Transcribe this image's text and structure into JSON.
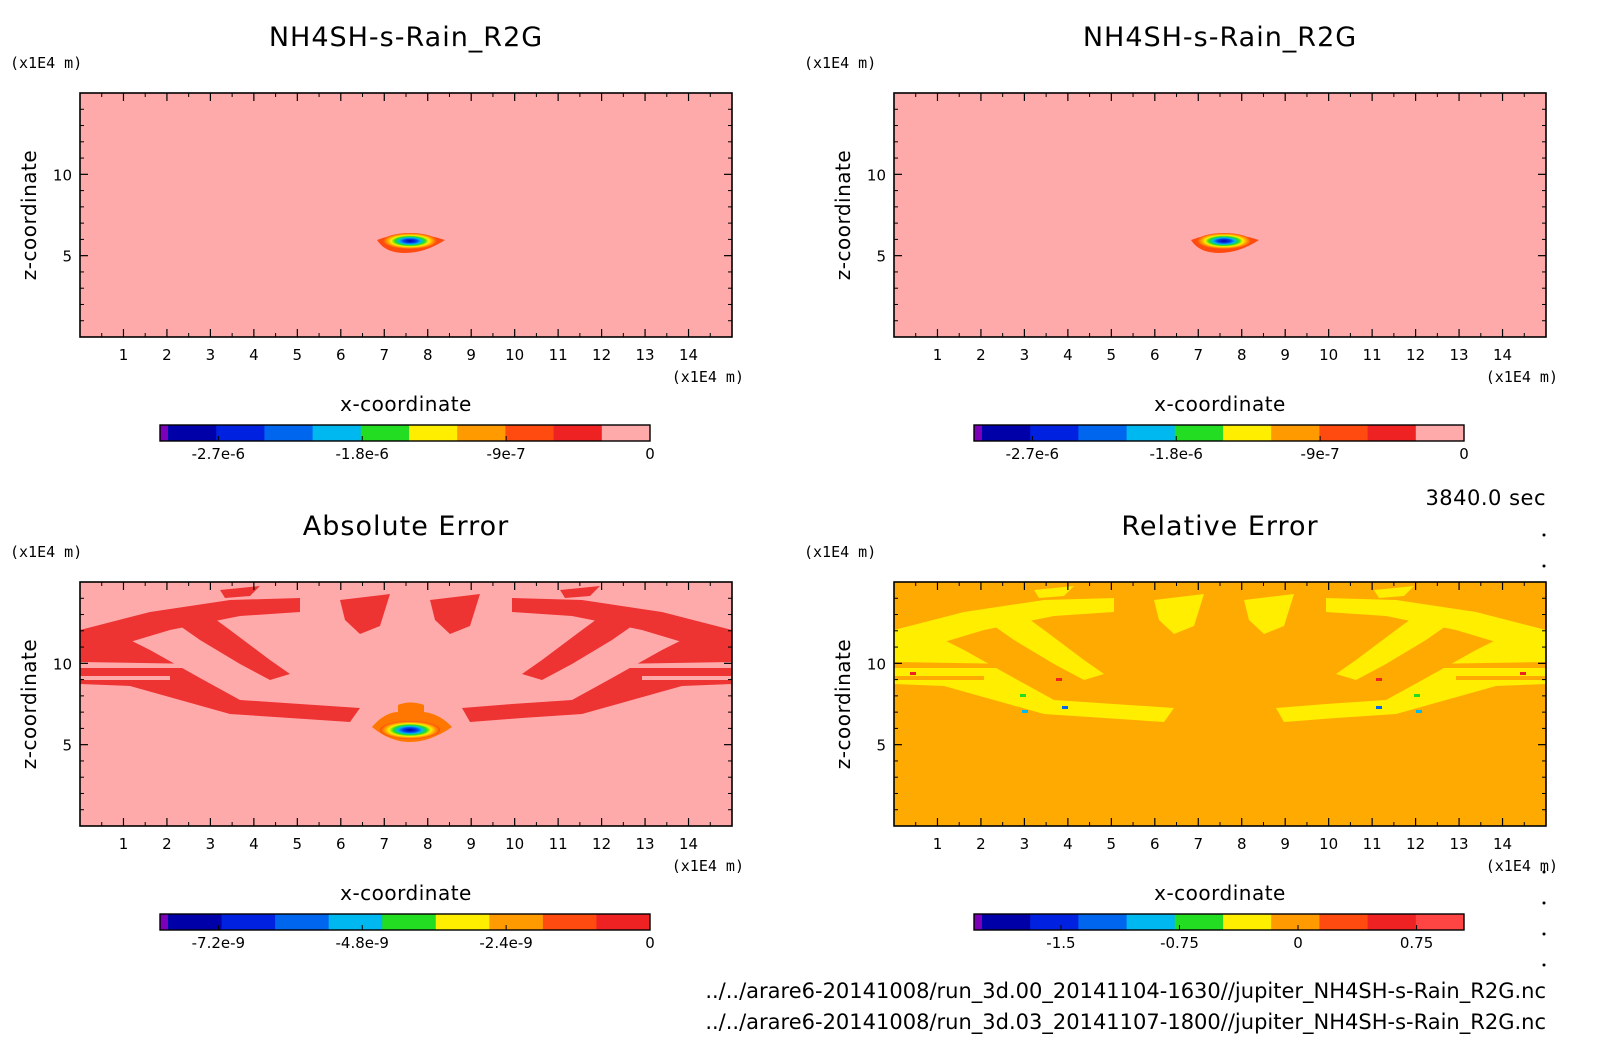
{
  "time_label": "3840.0 sec",
  "file_paths": [
    "../../arare6-20141008/run_3d.00_20141104-1630//jupiter_NH4SH-s-Rain_R2G.nc",
    "../../arare6-20141008/run_3d.03_20141107-1800//jupiter_NH4SH-s-Rain_R2G.nc"
  ],
  "chart_data": [
    {
      "type": "heatmap",
      "title": "NH4SH-s-Rain_R2G",
      "xlabel": "x-coordinate",
      "ylabel": "z-coordinate",
      "x_unit": "(x1E4 m)",
      "y_unit": "(x1E4 m)",
      "xlim": [
        0,
        15
      ],
      "ylim": [
        0,
        15
      ],
      "x_ticks": [
        "1",
        "2",
        "3",
        "4",
        "5",
        "6",
        "7",
        "8",
        "9",
        "10",
        "11",
        "12",
        "13",
        "14"
      ],
      "y_ticks": [
        "5",
        "10"
      ],
      "background_value": 0,
      "features": [
        {
          "kind": "blob",
          "x": 7.6,
          "z": 5.8,
          "width": 1.5,
          "height": 0.7,
          "min_value": -3e-06
        }
      ],
      "colorbar": {
        "colors": [
          "#7b00b8",
          "#0000a8",
          "#0022e0",
          "#0066ee",
          "#00b8f0",
          "#22dd22",
          "#ffee00",
          "#ff9a00",
          "#ff4a10",
          "#ee2222",
          "#ffaaaa"
        ],
        "labels": [
          "-2.7e-6",
          "-1.8e-6",
          "-9e-7",
          "0"
        ]
      }
    },
    {
      "type": "heatmap",
      "title": "NH4SH-s-Rain_R2G",
      "xlabel": "x-coordinate",
      "ylabel": "z-coordinate",
      "x_unit": "(x1E4 m)",
      "y_unit": "(x1E4 m)",
      "xlim": [
        0,
        15
      ],
      "ylim": [
        0,
        15
      ],
      "x_ticks": [
        "1",
        "2",
        "3",
        "4",
        "5",
        "6",
        "7",
        "8",
        "9",
        "10",
        "11",
        "12",
        "13",
        "14"
      ],
      "y_ticks": [
        "5",
        "10"
      ],
      "background_value": 0,
      "features": [
        {
          "kind": "blob",
          "x": 7.6,
          "z": 5.8,
          "width": 1.5,
          "height": 0.7,
          "min_value": -3e-06
        }
      ],
      "colorbar": {
        "colors": [
          "#7b00b8",
          "#0000a8",
          "#0022e0",
          "#0066ee",
          "#00b8f0",
          "#22dd22",
          "#ffee00",
          "#ff9a00",
          "#ff4a10",
          "#ee2222",
          "#ffaaaa"
        ],
        "labels": [
          "-2.7e-6",
          "-1.8e-6",
          "-9e-7",
          "0"
        ]
      }
    },
    {
      "type": "heatmap",
      "title": "Absolute Error",
      "xlabel": "x-coordinate",
      "ylabel": "z-coordinate",
      "x_unit": "(x1E4 m)",
      "y_unit": "(x1E4 m)",
      "xlim": [
        0,
        15
      ],
      "ylim": [
        0,
        15
      ],
      "x_ticks": [
        "1",
        "2",
        "3",
        "4",
        "5",
        "6",
        "7",
        "8",
        "9",
        "10",
        "11",
        "12",
        "13",
        "14"
      ],
      "y_ticks": [
        "5",
        "10"
      ],
      "background_value": 0,
      "features": [
        {
          "kind": "blob",
          "x": 7.6,
          "z": 5.8,
          "width": 1.5,
          "height": 0.9,
          "min_value": -7.2e-09
        },
        {
          "kind": "arc-band",
          "side": "left",
          "value_class": "small-negative"
        },
        {
          "kind": "arc-band",
          "side": "right",
          "value_class": "small-negative"
        }
      ],
      "colorbar": {
        "colors": [
          "#7b00b8",
          "#0000a8",
          "#0022e0",
          "#0066ee",
          "#00b8f0",
          "#22dd22",
          "#ffee00",
          "#ff9a00",
          "#ff4a10",
          "#ee2222"
        ],
        "labels": [
          "-7.2e-9",
          "-4.8e-9",
          "-2.4e-9",
          "0"
        ]
      }
    },
    {
      "type": "heatmap",
      "title": "Relative Error",
      "xlabel": "x-coordinate",
      "ylabel": "z-coordinate",
      "x_unit": "(x1E4 m)",
      "y_unit": "(x1E4 m)",
      "xlim": [
        0,
        15
      ],
      "ylim": [
        0,
        15
      ],
      "x_ticks": [
        "1",
        "2",
        "3",
        "4",
        "5",
        "6",
        "7",
        "8",
        "9",
        "10",
        "11",
        "12",
        "13",
        "14"
      ],
      "y_ticks": [
        "5",
        "10"
      ],
      "background_value": 0,
      "features": [
        {
          "kind": "arc-band",
          "side": "left",
          "value_class": "small-negative"
        },
        {
          "kind": "arc-band",
          "side": "right",
          "value_class": "small-negative"
        }
      ],
      "colorbar": {
        "colors": [
          "#7b00b8",
          "#0000a8",
          "#0022e0",
          "#0066ee",
          "#00b8f0",
          "#22dd22",
          "#ffee00",
          "#ff9a00",
          "#ff4a10",
          "#ee2222",
          "#ff4444"
        ],
        "labels": [
          "-1.5",
          "-0.75",
          "0",
          "0.75"
        ],
        "label_values": [
          -1.5,
          -0.75,
          0,
          0.75
        ],
        "range": [
          -2.05,
          1.05
        ]
      }
    }
  ]
}
